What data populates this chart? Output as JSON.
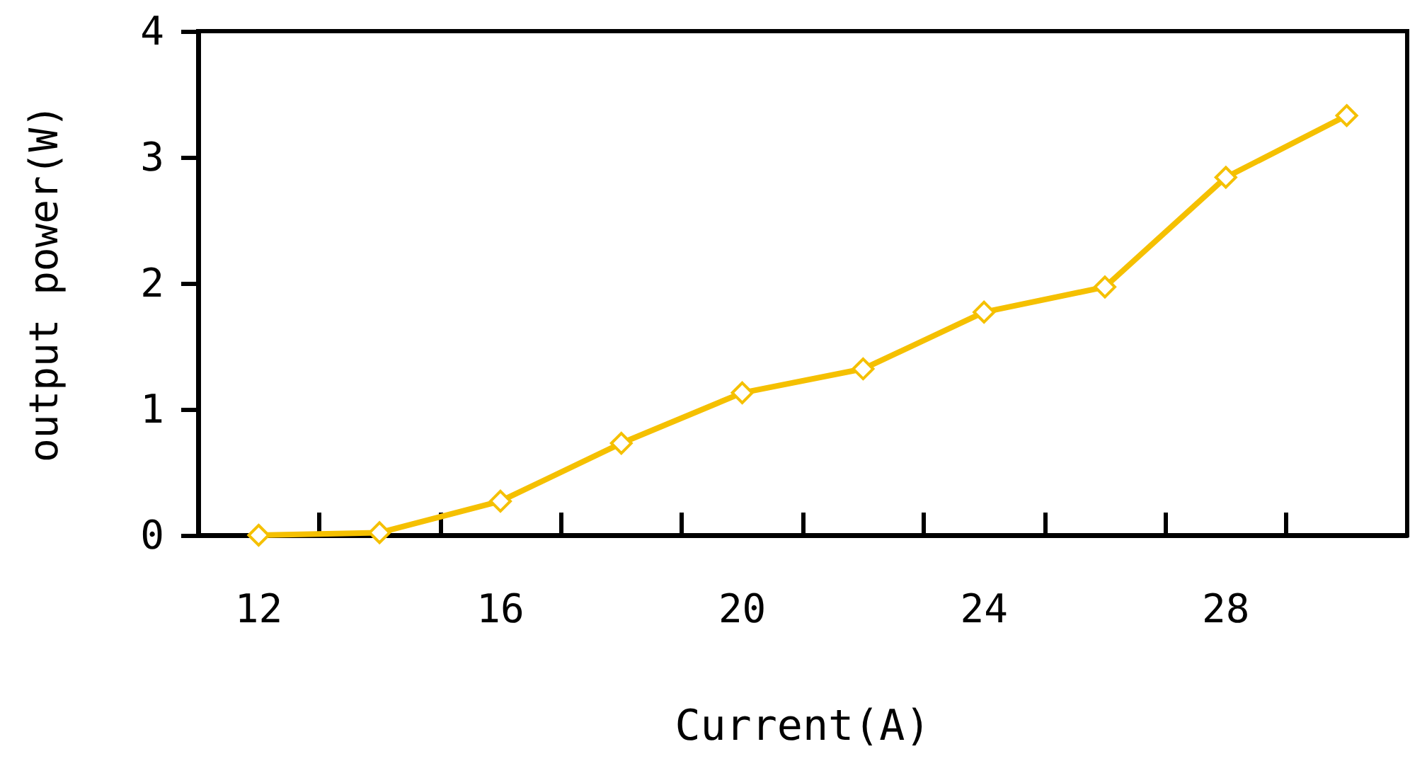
{
  "chart_data": {
    "type": "line",
    "xlabel": "Current(A)",
    "ylabel": "output power(W)",
    "x": [
      12,
      14,
      16,
      18,
      20,
      22,
      24,
      26,
      28,
      30
    ],
    "series": [
      {
        "color": "#f5c000",
        "values": [
          0,
          0.02,
          0.27,
          0.73,
          1.13,
          1.32,
          1.77,
          1.97,
          2.84,
          3.33
        ]
      }
    ],
    "xlim": [
      11,
      31
    ],
    "xticks": [
      12,
      {
        "value": 13,
        "label": null
      },
      {
        "value": 15,
        "label": null
      },
      16,
      {
        "value": 17,
        "label": null
      },
      {
        "value": 19,
        "label": null
      },
      20,
      {
        "value": 21,
        "label": null
      },
      {
        "value": 23,
        "label": null
      },
      24,
      {
        "value": 25,
        "label": null
      },
      {
        "value": 27,
        "label": null
      },
      28,
      {
        "value": 29,
        "label": null
      }
    ],
    "ylim": [
      0,
      4
    ],
    "yticks": [
      0,
      1,
      2,
      3,
      4
    ],
    "grid": false,
    "marker": "diamond",
    "line_style": "solid"
  }
}
